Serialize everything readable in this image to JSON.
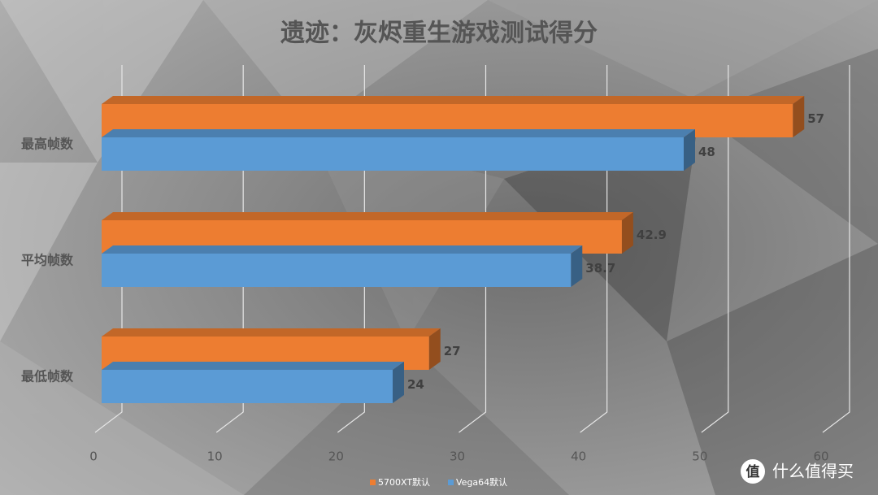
{
  "chart_data": {
    "type": "bar3d-horizontal",
    "title": "遗迹：灰烬重生游戏测试得分",
    "categories": [
      "最高帧数",
      "平均帧数",
      "最低帧数"
    ],
    "series": [
      {
        "name": "5700XT默认",
        "color": "#ed7d31",
        "values": [
          57,
          42.9,
          27
        ]
      },
      {
        "name": "Vega64默认",
        "color": "#5b9bd5",
        "values": [
          48,
          38.7,
          24
        ]
      }
    ],
    "xlim": [
      0,
      60
    ],
    "xticks": [
      0,
      10,
      20,
      30,
      40,
      50,
      60
    ],
    "grid": true,
    "legend": "bottom",
    "watermark_icon": "值",
    "watermark": "什么值得买"
  }
}
